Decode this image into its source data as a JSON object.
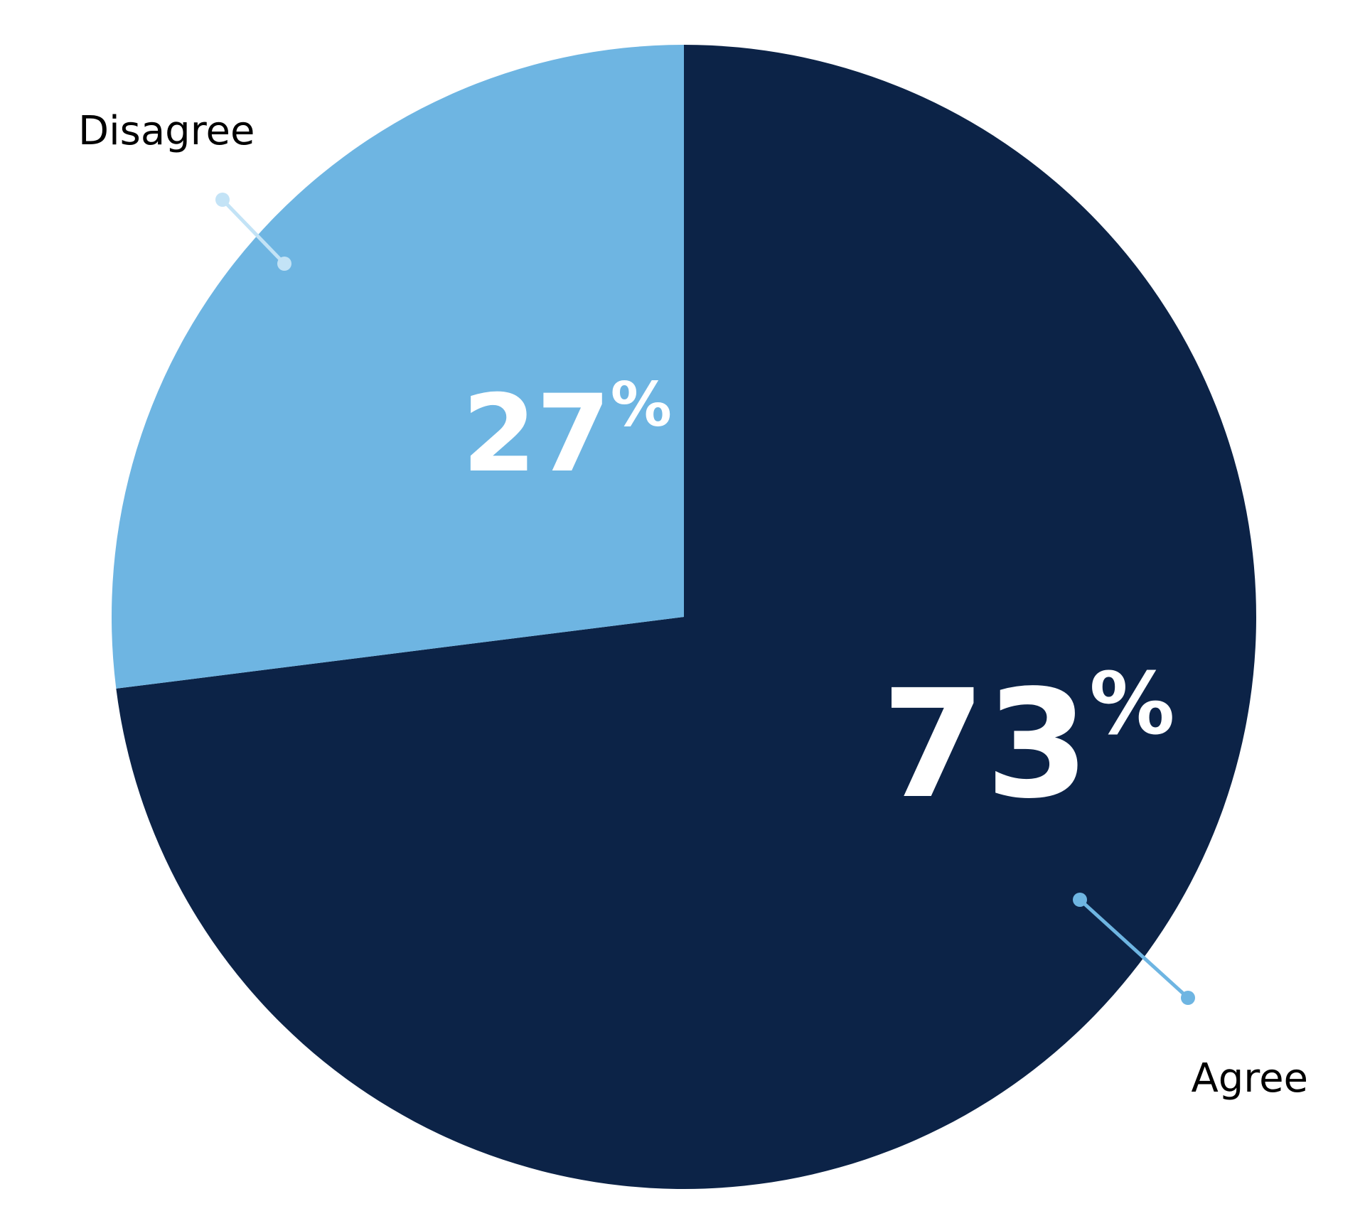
{
  "chart_data": {
    "type": "pie",
    "title": "",
    "slices": [
      {
        "label": "Agree",
        "value": 73,
        "value_text": "73",
        "unit": "%",
        "color": "#0c2347"
      },
      {
        "label": "Disagree",
        "value": 27,
        "value_text": "27",
        "unit": "%",
        "color": "#6eb5e2"
      }
    ],
    "leader_line_colors": {
      "Agree": "#6eb5e2",
      "Disagree": "#c3e3f6"
    },
    "legend": "none"
  }
}
